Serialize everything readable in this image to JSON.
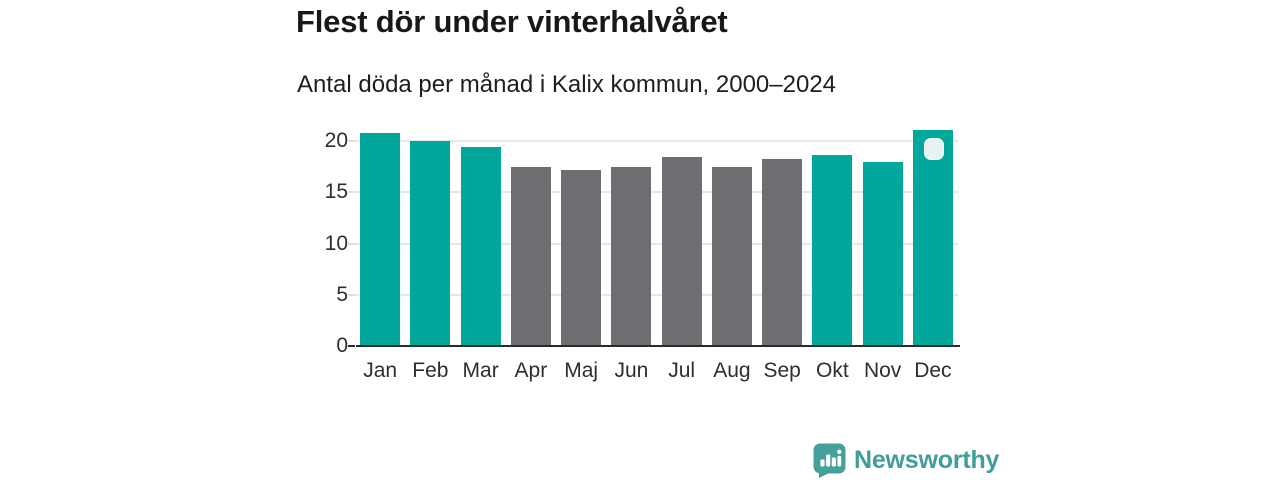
{
  "header": {
    "title": "Flest dör under vinterhalvåret",
    "subtitle": "Antal döda per månad i Kalix kommun, 2000–2024"
  },
  "chart_data": {
    "type": "bar",
    "title": "Flest dör under vinterhalvåret",
    "subtitle": "Antal döda per månad i Kalix kommun, 2000–2024",
    "categories": [
      "Jan",
      "Feb",
      "Mar",
      "Apr",
      "Maj",
      "Jun",
      "Jul",
      "Aug",
      "Sep",
      "Okt",
      "Nov",
      "Dec"
    ],
    "values": [
      20.8,
      20.0,
      19.4,
      17.5,
      17.2,
      17.5,
      18.4,
      17.5,
      18.2,
      18.6,
      18.0,
      21.1
    ],
    "point_colors": [
      "#00a79a",
      "#00a79a",
      "#00a79a",
      "#6e6d71",
      "#6e6d71",
      "#6e6d71",
      "#6e6d71",
      "#6e6d71",
      "#6e6d71",
      "#00a79a",
      "#00a79a",
      "#00a79a"
    ],
    "xlabel": "",
    "ylabel": "",
    "yticks": [
      0,
      5,
      10,
      15,
      20
    ],
    "ylim": [
      0,
      22.05
    ],
    "grid": true,
    "legend": false,
    "annotation": {
      "target_month": "Dec",
      "style": "rounded-square-badge"
    }
  },
  "colors": {
    "winter_bar": "#00a79a",
    "summer_bar": "#6e6d71",
    "grid": "#e7e7e7",
    "axis_line": "#2b2b29",
    "tick_text": "#2e2e2c",
    "badge_fill": "#e8f2f0",
    "brand_teal": "#3f9e99"
  },
  "footer": {
    "brand": "Newsworthy"
  }
}
